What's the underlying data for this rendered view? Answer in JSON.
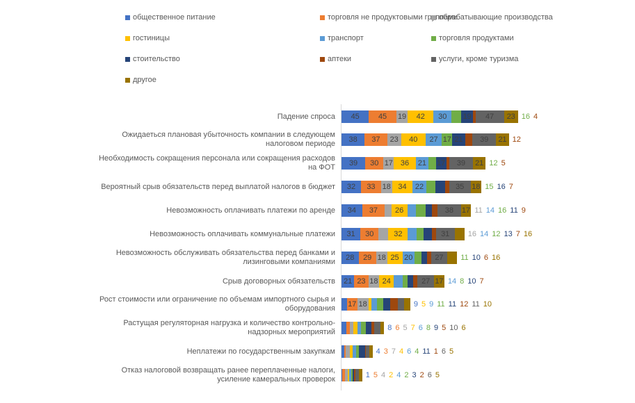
{
  "chart_data": {
    "type": "bar",
    "orientation": "horizontal",
    "stacked": true,
    "title": "",
    "xlabel": "",
    "ylabel": "",
    "grid": false,
    "legend_position": "top",
    "categories": [
      "Падение спроса",
      "Ожидаеться плановая убыточность компании в следующем налоговом периоде",
      "Необходимость сокращения персонала или сокращения расходов на ФОТ",
      "Вероятный срыв обязательств перед выплатой налогов в бюджет",
      "Невозможность оплачивать платежи по аренде",
      "Невозможность оплачивать коммунальные платежи",
      "Невозможность обслуживать обязательства перед банками и лизинговыми компаниями",
      "Срыв договорных обязательств",
      "Рост стоимости или  ограничение по объемам импортного сырья и оборудования",
      "Растущая регуляторная нагрузка и количество контрольно-надзорных мероприятий",
      "Неплатежи по государственным закупкам",
      "Отказ налоговой возвращать ранее переплаченные налоги, усиление камеральных проверок"
    ],
    "series": [
      {
        "name": "общественное питание",
        "color": "#4472c4",
        "values": [
          45,
          38,
          39,
          32,
          34,
          31,
          28,
          21,
          9,
          8,
          4,
          1
        ]
      },
      {
        "name": "торговля не продуктовыми группами",
        "color": "#ed7d31",
        "values": [
          45,
          37,
          30,
          33,
          37,
          30,
          29,
          23,
          17,
          6,
          3,
          5
        ]
      },
      {
        "name": "обрабатывающие производства",
        "color": "#a5a5a5",
        "values": [
          19,
          23,
          17,
          18,
          11,
          16,
          18,
          18,
          18,
          5,
          7,
          4
        ]
      },
      {
        "name": "гостиницы",
        "color": "#ffc000",
        "values": [
          42,
          40,
          36,
          34,
          26,
          32,
          25,
          24,
          5,
          7,
          4,
          2
        ]
      },
      {
        "name": "транспорт",
        "color": "#5b9bd5",
        "values": [
          30,
          27,
          21,
          22,
          14,
          14,
          20,
          14,
          9,
          6,
          6,
          4
        ]
      },
      {
        "name": "торговля продуктами",
        "color": "#70ad47",
        "values": [
          16,
          17,
          12,
          15,
          16,
          12,
          11,
          8,
          11,
          8,
          4,
          2
        ]
      },
      {
        "name": "стоительство",
        "color": "#264478",
        "values": [
          19,
          21,
          17,
          16,
          11,
          13,
          10,
          10,
          11,
          9,
          11,
          3
        ]
      },
      {
        "name": "аптеки",
        "color": "#9e480e",
        "values": [
          4,
          12,
          5,
          7,
          9,
          7,
          6,
          7,
          12,
          5,
          1,
          2
        ]
      },
      {
        "name": "услуги,  кроме туризма",
        "color": "#636363",
        "values": [
          47,
          39,
          39,
          35,
          38,
          31,
          27,
          27,
          11,
          10,
          6,
          6
        ]
      },
      {
        "name": "другое",
        "color": "#997300",
        "values": [
          23,
          21,
          21,
          18,
          17,
          16,
          16,
          17,
          10,
          6,
          5,
          5
        ]
      }
    ]
  }
}
